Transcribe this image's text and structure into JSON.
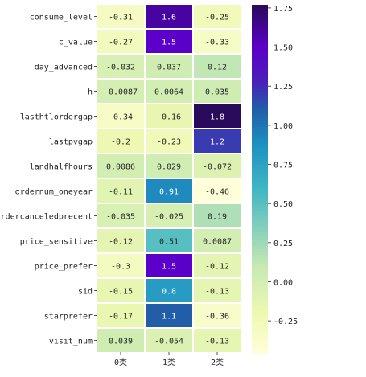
{
  "chart_data": {
    "type": "heatmap",
    "title": "",
    "xlabel": "",
    "ylabel": "",
    "columns": [
      "0类",
      "1类",
      "2类"
    ],
    "rows": [
      "consume_level",
      "c_value",
      "day_advanced",
      "h",
      "lasthtlordergap",
      "lastpvgap",
      "landhalfhours",
      "ordernum_oneyear",
      "ordercanceledprecent",
      "price_sensitive",
      "price_prefer",
      "sid",
      "starprefer",
      "visit_num"
    ],
    "values": [
      [
        -0.31,
        1.6,
        -0.25
      ],
      [
        -0.27,
        1.5,
        -0.33
      ],
      [
        -0.032,
        0.037,
        0.12
      ],
      [
        -0.0087,
        0.0064,
        0.035
      ],
      [
        -0.34,
        -0.16,
        1.8
      ],
      [
        -0.2,
        -0.23,
        1.2
      ],
      [
        0.0086,
        0.029,
        -0.072
      ],
      [
        -0.11,
        0.91,
        -0.46
      ],
      [
        -0.035,
        -0.025,
        0.19
      ],
      [
        -0.12,
        0.51,
        0.0087
      ],
      [
        -0.3,
        1.5,
        -0.12
      ],
      [
        -0.15,
        0.8,
        -0.13
      ],
      [
        -0.17,
        1.1,
        -0.36
      ],
      [
        0.039,
        -0.054,
        -0.13
      ]
    ],
    "labels": [
      [
        "-0.31",
        "1.6",
        "-0.25"
      ],
      [
        "-0.27",
        "1.5",
        "-0.33"
      ],
      [
        "-0.032",
        "0.037",
        "0.12"
      ],
      [
        "-0.0087",
        "0.0064",
        "0.035"
      ],
      [
        "-0.34",
        "-0.16",
        "1.8"
      ],
      [
        "-0.2",
        "-0.23",
        "1.2"
      ],
      [
        "0.0086",
        "0.029",
        "-0.072"
      ],
      [
        "-0.11",
        "0.91",
        "-0.46"
      ],
      [
        "-0.035",
        "-0.025",
        "0.19"
      ],
      [
        "-0.12",
        "0.51",
        "0.0087"
      ],
      [
        "-0.3",
        "1.5",
        "-0.12"
      ],
      [
        "-0.15",
        "0.8",
        "-0.13"
      ],
      [
        "-0.17",
        "1.1",
        "-0.36"
      ],
      [
        "0.039",
        "-0.054",
        "-0.13"
      ]
    ],
    "colorscale": {
      "name": "rainbow-like",
      "vmin": -0.46,
      "vmax": 1.77,
      "stops": [
        [
          0.0,
          "#ffffd9"
        ],
        [
          0.12,
          "#edf8b1"
        ],
        [
          0.25,
          "#c7e9b4"
        ],
        [
          0.37,
          "#7fcdbb"
        ],
        [
          0.47,
          "#41b6c4"
        ],
        [
          0.6,
          "#1d91c0"
        ],
        [
          0.7,
          "#225ea8"
        ],
        [
          0.78,
          "#4b20b8"
        ],
        [
          0.88,
          "#5a00c8"
        ],
        [
          1.0,
          "#2a0a5a"
        ]
      ],
      "ticks": [
        -0.25,
        0.0,
        0.25,
        0.5,
        0.75,
        1.0,
        1.25,
        1.5,
        1.75
      ],
      "tick_labels": [
        "-0.25",
        "0.00",
        "0.25",
        "0.50",
        "0.75",
        "1.00",
        "1.25",
        "1.50",
        "1.75"
      ]
    },
    "grid": true,
    "legend": "right"
  }
}
